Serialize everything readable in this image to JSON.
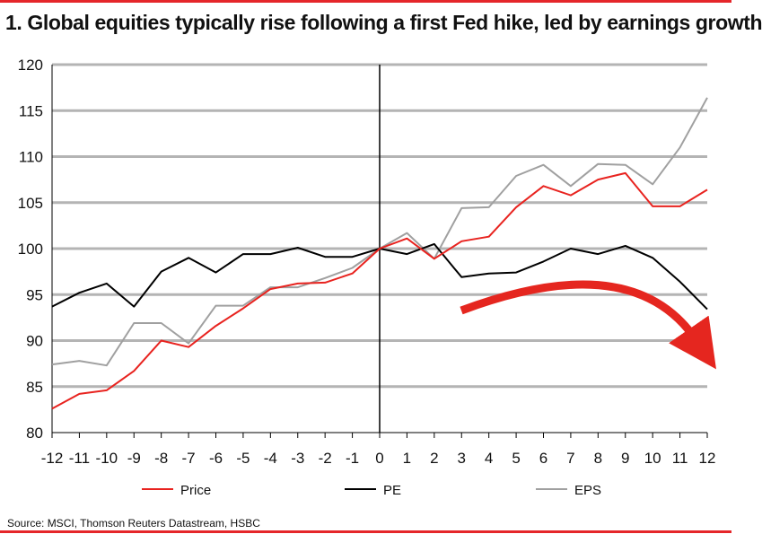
{
  "title": "1. Global equities typically rise following a first Fed hike, led by earnings growth",
  "source": "Source: MSCI, Thomson Reuters Datastream, HSBC",
  "chart_data": {
    "type": "line",
    "x": [
      -12,
      -11,
      -10,
      -9,
      -8,
      -7,
      -6,
      -5,
      -4,
      -3,
      -2,
      -1,
      0,
      1,
      2,
      3,
      4,
      5,
      6,
      7,
      8,
      9,
      10,
      11,
      12
    ],
    "xlim": [
      -12,
      12
    ],
    "ylim": [
      80,
      120
    ],
    "y_ticks": [
      80,
      85,
      90,
      95,
      100,
      105,
      110,
      115,
      120
    ],
    "grid": "horizontal",
    "reference_line_x": 0,
    "legend_position": "bottom",
    "series": [
      {
        "name": "Price",
        "color": "#e8231f",
        "values": [
          82.6,
          84.2,
          84.6,
          86.7,
          90.0,
          89.3,
          91.6,
          93.5,
          95.6,
          96.2,
          96.3,
          97.3,
          100.0,
          101.1,
          98.9,
          100.8,
          101.3,
          104.5,
          106.8,
          105.8,
          107.5,
          108.2,
          104.6,
          104.6,
          106.4
        ]
      },
      {
        "name": "PE",
        "color": "#000000",
        "values": [
          93.7,
          95.2,
          96.2,
          93.7,
          97.5,
          99.0,
          97.4,
          99.4,
          99.4,
          100.1,
          99.1,
          99.1,
          100.0,
          99.4,
          100.5,
          96.9,
          97.3,
          97.4,
          98.6,
          100.0,
          99.4,
          100.3,
          99.0,
          96.4,
          93.4
        ]
      },
      {
        "name": "EPS",
        "color": "#a0a0a0",
        "values": [
          87.4,
          87.8,
          87.3,
          91.9,
          91.9,
          89.7,
          93.8,
          93.8,
          95.8,
          95.8,
          96.8,
          97.9,
          100.0,
          101.7,
          98.9,
          104.4,
          104.5,
          107.9,
          109.1,
          106.8,
          109.2,
          109.1,
          107.0,
          111.0,
          116.4
        ]
      }
    ],
    "annotation": {
      "type": "arrow",
      "description": "curved arrow",
      "color": "#e5261f"
    }
  }
}
